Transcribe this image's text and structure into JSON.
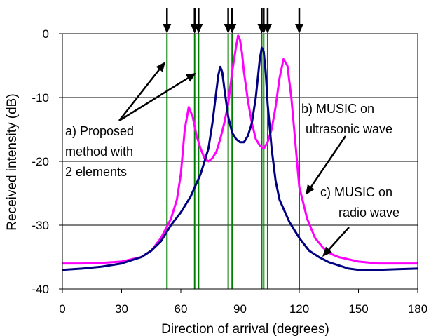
{
  "chart_data": {
    "type": "line",
    "xlabel": "Direction of arrival (degrees)",
    "ylabel": "Received intensity (dB)",
    "xlim": [
      0,
      180
    ],
    "ylim": [
      -40,
      0
    ],
    "xticks": [
      0,
      30,
      60,
      90,
      120,
      150,
      180
    ],
    "yticks": [
      0,
      -10,
      -20,
      -30,
      -40
    ],
    "xtick_labels": [
      "0",
      "30",
      "60",
      "90",
      "120",
      "150",
      "180"
    ],
    "ytick_labels": [
      "0",
      "-10",
      "-20",
      "-30",
      "-40"
    ],
    "grid": "horizontal",
    "series": [
      {
        "color": "#ff00ff",
        "x": [
          0,
          10,
          20,
          30,
          40,
          45,
          50,
          55,
          58,
          60,
          62,
          64,
          66,
          68,
          70,
          72,
          74,
          76,
          78,
          80,
          82,
          84,
          86,
          88,
          89,
          90,
          91,
          92,
          94,
          96,
          98,
          100,
          102,
          104,
          106,
          108,
          110,
          112,
          114,
          116,
          118,
          120,
          124,
          128,
          132,
          136,
          140,
          150,
          160,
          170,
          180
        ],
        "y": [
          -36,
          -36,
          -35.9,
          -35.7,
          -35,
          -34,
          -32,
          -29,
          -26,
          -22,
          -15,
          -11.5,
          -13,
          -16,
          -18,
          -19.5,
          -20,
          -19.5,
          -18.5,
          -16.5,
          -14,
          -11,
          -6,
          -2,
          -0.3,
          -1,
          -3,
          -6,
          -10.5,
          -14,
          -16.5,
          -17.5,
          -18,
          -17,
          -15,
          -11.5,
          -7,
          -4,
          -5,
          -10,
          -17,
          -24,
          -29,
          -32,
          -33.5,
          -34.5,
          -35,
          -35.7,
          -36,
          -36,
          -36
        ]
      },
      {
        "color": "#000080",
        "x": [
          0,
          10,
          20,
          30,
          40,
          45,
          50,
          55,
          60,
          65,
          70,
          74,
          76,
          78,
          79,
          80,
          81,
          82,
          84,
          86,
          88,
          90,
          92,
          94,
          96,
          98,
          100,
          101,
          102,
          103,
          104,
          106,
          108,
          110,
          115,
          120,
          125,
          130,
          135,
          140,
          145,
          150,
          160,
          170,
          180
        ],
        "y": [
          -37,
          -36.8,
          -36.5,
          -36,
          -35,
          -34,
          -32.5,
          -30,
          -28,
          -25.5,
          -22,
          -18,
          -14,
          -9,
          -6.5,
          -5.2,
          -6,
          -8.5,
          -13,
          -15.5,
          -16.5,
          -17,
          -17,
          -16,
          -14,
          -10,
          -4,
          -2.2,
          -2.8,
          -6,
          -11,
          -18,
          -23,
          -26,
          -29.5,
          -32,
          -34,
          -35,
          -35.8,
          -36.3,
          -36.8,
          -37,
          -37,
          -36.9,
          -36.8
        ]
      }
    ],
    "spikes": [
      53,
      67,
      69,
      84,
      86,
      101,
      102,
      104,
      120
    ],
    "spike_color": "#008000",
    "annotations": [
      "a) Proposed",
      "method with",
      "2 elements",
      "b) MUSIC on",
      "ultrasonic wave",
      "c) MUSIC on",
      "radio wave"
    ]
  }
}
